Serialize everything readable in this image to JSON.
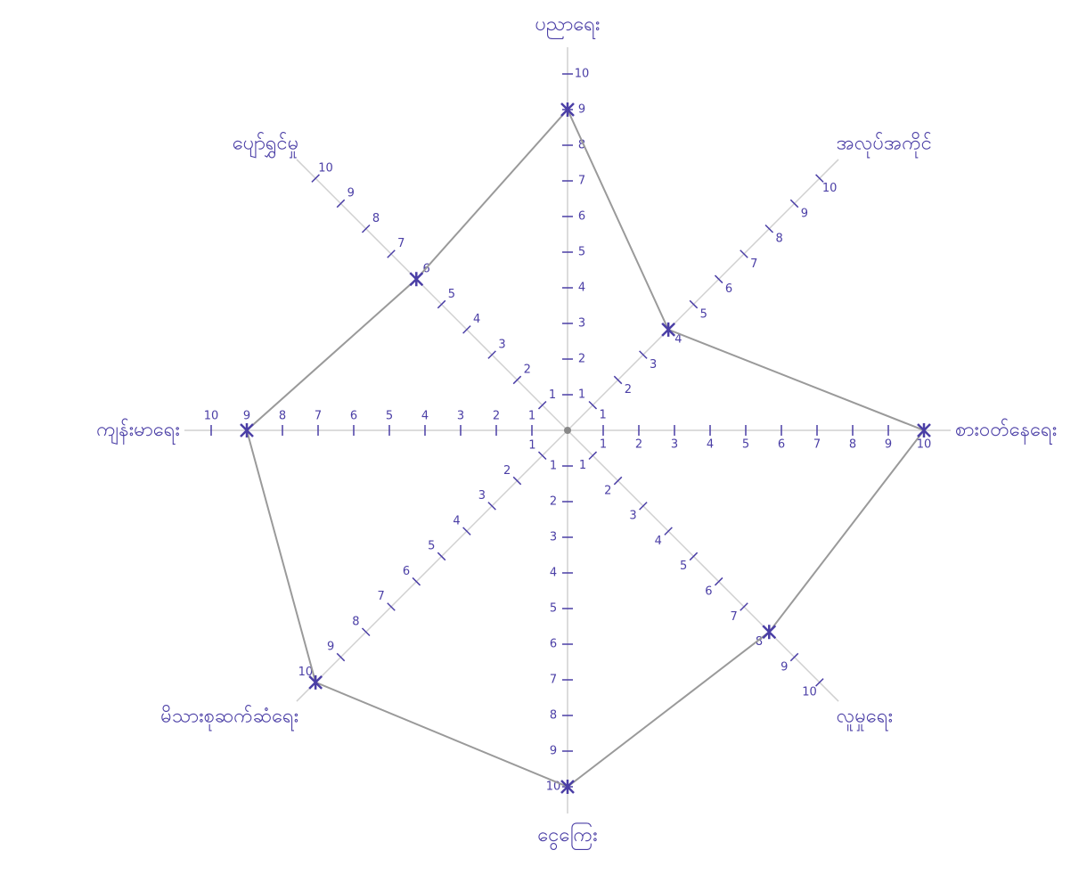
{
  "chart_data": {
    "type": "radar",
    "categories": [
      "ပညာရေး",
      "အလုပ်အကိုင်",
      "စားဝတ်နေရေး",
      "လူမှုရေး",
      "ငွေကြေး",
      "မိသားစုဆက်ဆံရေး",
      "ကျန်းမာရေး",
      "ပျော်ရွှင်မှု"
    ],
    "values": [
      9,
      4,
      10,
      8,
      10,
      10,
      9,
      6
    ],
    "color": "#9a9a9a",
    "marker_color": "#4b3fa6",
    "rlim": [
      0,
      10
    ],
    "rticks": [
      1,
      2,
      3,
      4,
      5,
      6,
      7,
      8,
      9,
      10
    ]
  }
}
